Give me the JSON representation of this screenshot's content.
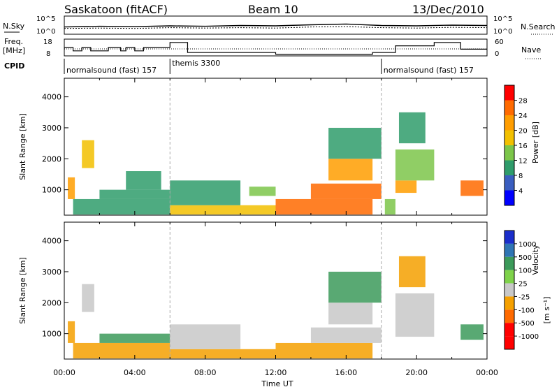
{
  "header": {
    "station": "Saskatoon (fitACF)",
    "beam": "Beam 10",
    "date": "13/Dec/2010"
  },
  "noise_panel": {
    "left_label": "N.Sky",
    "right_label": "N.Search",
    "left_ticks": [
      "10^5",
      "10^0"
    ],
    "right_ticks": [
      "10^5",
      "10^0"
    ]
  },
  "freq_panel": {
    "left_label_1": "Freq.",
    "left_label_2": "[MHz]",
    "right_label": "Nave",
    "left_ticks": [
      "18",
      "8"
    ],
    "right_ticks": [
      "60",
      "0"
    ]
  },
  "cpid": {
    "label": "CPID",
    "segments": [
      {
        "text": "normalsound (fast) 157",
        "start": 0,
        "end": 6
      },
      {
        "text": "themis 3300",
        "start": 6,
        "end": 18
      },
      {
        "text": "normalsound (fast) 157",
        "start": 18,
        "end": 24
      }
    ]
  },
  "power_colorbar": {
    "label": "Power [dB]",
    "ticks": [
      "28",
      "24",
      "20",
      "16",
      "12",
      "8",
      "4"
    ],
    "colors": [
      "#ff0000",
      "#ff6a00",
      "#ff9d00",
      "#f2c000",
      "#7cc64a",
      "#2f9c6b",
      "#3a5ec0",
      "#0000ff"
    ]
  },
  "velocity_colorbar": {
    "label": "Velocity",
    "unit": "[m s⁻¹]",
    "ticks": [
      "1000",
      "500",
      "100",
      "25",
      "-25",
      "-100",
      "-500",
      "-1000"
    ],
    "colors": [
      "#1a2ecb",
      "#2f75b4",
      "#3c9a5a",
      "#7ed24a",
      "#c8c8c8",
      "#f5a000",
      "#ff6a00",
      "#ff0000"
    ]
  },
  "chart_data": [
    {
      "type": "line",
      "panel": "noise",
      "x": [
        0,
        2,
        4,
        6,
        8,
        10,
        12,
        14,
        16,
        18,
        20,
        22,
        24
      ],
      "series": [
        {
          "name": "N.Sky",
          "values": [
            2.0,
            2.2,
            2.1,
            2.3,
            2.2,
            2.4,
            2.3,
            2.6,
            2.8,
            2.4,
            2.3,
            2.5,
            2.4
          ]
        },
        {
          "name": "N.Search",
          "values": [
            1.6,
            1.7,
            1.6,
            1.8,
            1.7,
            1.8,
            1.7,
            2.0,
            2.1,
            1.8,
            1.7,
            1.9,
            1.8
          ]
        }
      ],
      "ylim": [
        0,
        5
      ]
    },
    {
      "type": "line",
      "panel": "frequency",
      "x": [
        0,
        0.5,
        1.0,
        1.5,
        2.5,
        3.2,
        3.5,
        4.0,
        4.5,
        6.0,
        7.0,
        12.0,
        16.5,
        17.5,
        18.8,
        21.0,
        22.5,
        24
      ],
      "series": [
        {
          "name": "Freq.",
          "values": [
            13,
            11,
            13,
            11,
            13,
            11,
            13,
            11,
            13,
            16,
            10,
            9,
            9,
            10,
            14,
            16,
            12,
            12
          ]
        },
        {
          "name": "Nave",
          "values": [
            25,
            25,
            25,
            25,
            25,
            25,
            25,
            25,
            25,
            25,
            25,
            25,
            25,
            25,
            25,
            25,
            25,
            25
          ]
        }
      ],
      "ylim": [
        8,
        18
      ]
    },
    {
      "type": "heatmap",
      "panel": "power",
      "xlabel": "Time UT",
      "ylabel": "Slant Range [km]",
      "x_ticks": [
        "00:00",
        "04:00",
        "08:00",
        "12:00",
        "16:00",
        "20:00",
        "00:00"
      ],
      "y_ticks": [
        "1000",
        "2000",
        "3000",
        "4000"
      ],
      "xlim": [
        0,
        24
      ],
      "ylim": [
        180,
        4600
      ],
      "patches": [
        {
          "t0": 0.2,
          "t1": 0.6,
          "r0": 700,
          "r1": 1400,
          "v": 20
        },
        {
          "t0": 1.0,
          "t1": 1.7,
          "r0": 1700,
          "r1": 2600,
          "v": 16
        },
        {
          "t0": 0.5,
          "t1": 6.0,
          "r0": 200,
          "r1": 700,
          "v": 8
        },
        {
          "t0": 2.0,
          "t1": 6.0,
          "r0": 700,
          "r1": 1000,
          "v": 10
        },
        {
          "t0": 3.5,
          "t1": 5.5,
          "r0": 1000,
          "r1": 1600,
          "v": 8
        },
        {
          "t0": 6.0,
          "t1": 12.0,
          "r0": 200,
          "r1": 500,
          "v": 16
        },
        {
          "t0": 6.0,
          "t1": 10.0,
          "r0": 500,
          "r1": 1300,
          "v": 8
        },
        {
          "t0": 10.5,
          "t1": 12.0,
          "r0": 800,
          "r1": 1100,
          "v": 12
        },
        {
          "t0": 12.0,
          "t1": 17.5,
          "r0": 200,
          "r1": 700,
          "v": 26
        },
        {
          "t0": 14.0,
          "t1": 18.0,
          "r0": 700,
          "r1": 1200,
          "v": 24
        },
        {
          "t0": 15.0,
          "t1": 17.5,
          "r0": 1300,
          "r1": 2000,
          "v": 22
        },
        {
          "t0": 15.0,
          "t1": 18.0,
          "r0": 2000,
          "r1": 3000,
          "v": 10
        },
        {
          "t0": 18.2,
          "t1": 18.8,
          "r0": 200,
          "r1": 700,
          "v": 12
        },
        {
          "t0": 18.8,
          "t1": 20.0,
          "r0": 900,
          "r1": 1300,
          "v": 22
        },
        {
          "t0": 18.8,
          "t1": 21.0,
          "r0": 1300,
          "r1": 2300,
          "v": 14
        },
        {
          "t0": 19.0,
          "t1": 20.5,
          "r0": 2500,
          "r1": 3500,
          "v": 10
        },
        {
          "t0": 22.5,
          "t1": 23.8,
          "r0": 800,
          "r1": 1300,
          "v": 24
        }
      ]
    },
    {
      "type": "heatmap",
      "panel": "velocity",
      "xlabel": "Time UT",
      "ylabel": "Slant Range [km]",
      "x_ticks": [
        "00:00",
        "04:00",
        "08:00",
        "12:00",
        "16:00",
        "20:00",
        "00:00"
      ],
      "y_ticks": [
        "1000",
        "2000",
        "3000",
        "4000"
      ],
      "xlim": [
        0,
        24
      ],
      "ylim": [
        180,
        4600
      ],
      "patches": [
        {
          "t0": 0.2,
          "t1": 0.6,
          "r0": 700,
          "r1": 1400,
          "v": -100
        },
        {
          "t0": 1.0,
          "t1": 1.7,
          "r0": 1700,
          "r1": 2600,
          "v": 0
        },
        {
          "t0": 0.5,
          "t1": 6.0,
          "r0": 200,
          "r1": 700,
          "v": -100
        },
        {
          "t0": 2.0,
          "t1": 6.0,
          "r0": 700,
          "r1": 1000,
          "v": 100
        },
        {
          "t0": 6.0,
          "t1": 12.0,
          "r0": 200,
          "r1": 500,
          "v": -100
        },
        {
          "t0": 6.0,
          "t1": 10.0,
          "r0": 500,
          "r1": 1300,
          "v": 0
        },
        {
          "t0": 12.0,
          "t1": 17.5,
          "r0": 200,
          "r1": 700,
          "v": -100
        },
        {
          "t0": 14.0,
          "t1": 18.0,
          "r0": 700,
          "r1": 1200,
          "v": 0
        },
        {
          "t0": 15.0,
          "t1": 17.5,
          "r0": 1300,
          "r1": 2000,
          "v": 0
        },
        {
          "t0": 15.0,
          "t1": 18.0,
          "r0": 2000,
          "r1": 3000,
          "v": 100
        },
        {
          "t0": 18.8,
          "t1": 21.0,
          "r0": 900,
          "r1": 2300,
          "v": 0
        },
        {
          "t0": 19.0,
          "t1": 20.5,
          "r0": 2500,
          "r1": 3500,
          "v": -100
        },
        {
          "t0": 22.5,
          "t1": 23.8,
          "r0": 800,
          "r1": 1300,
          "v": 100
        }
      ]
    }
  ]
}
